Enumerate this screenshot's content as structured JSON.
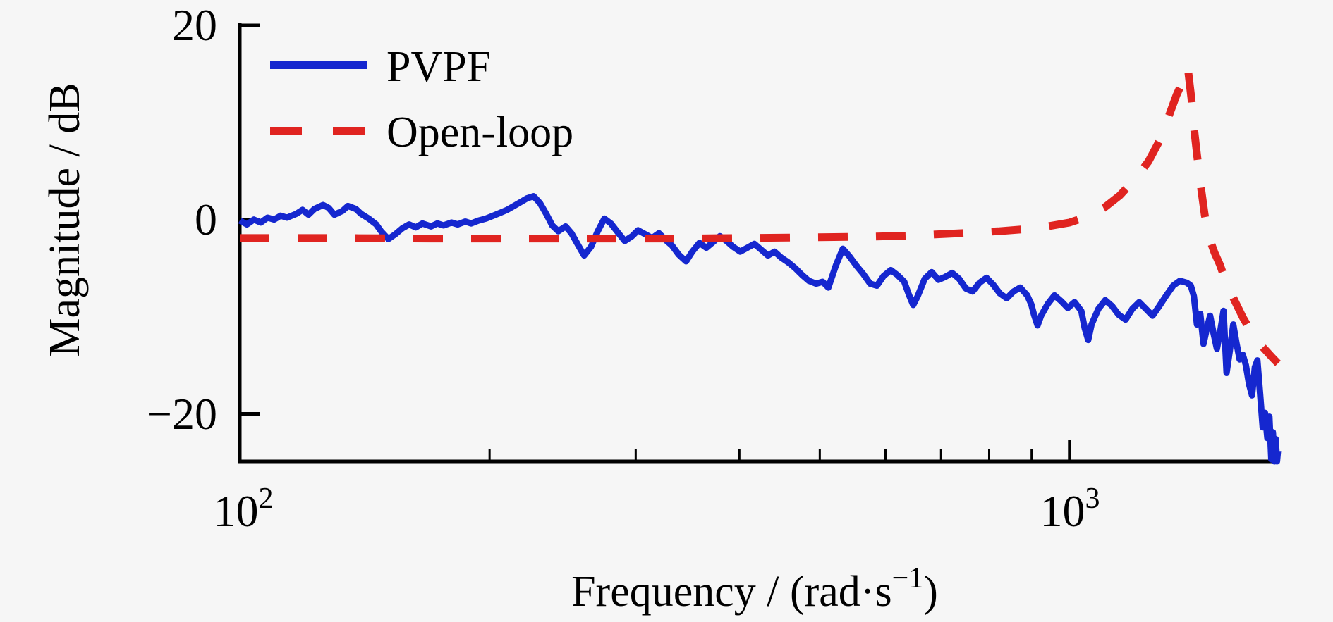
{
  "figure": {
    "background": "#f6f6f6",
    "axis_color": "#000000"
  },
  "chart_data": {
    "type": "line",
    "title": "",
    "xlabel": "Frequency / (rad·s⁻¹)",
    "ylabel": "Magnitude / dB",
    "x_scale": "log",
    "xlim": [
      100,
      1783
    ],
    "ylim": [
      -24.9,
      20
    ],
    "grid": false,
    "legend_position": "upper-left-inside",
    "xlabel_parts": {
      "pre": "Frequency / (rad·s",
      "sup": "−1",
      "post": ")"
    },
    "ylabel_text": "Magnitude / dB",
    "y_ticks": [
      {
        "label": "20",
        "value": 20
      },
      {
        "label": "0",
        "value": 0
      },
      {
        "label": "−20",
        "value": -20
      }
    ],
    "x_major_ticks": [
      {
        "base": "10",
        "sup": "2",
        "value": 100
      },
      {
        "base": "10",
        "sup": "3",
        "value": 1000
      }
    ],
    "x_minor_ticks": [
      200,
      300,
      400,
      500,
      600,
      700,
      800,
      900
    ],
    "series": [
      {
        "name": "PVPF",
        "color": "#1527cf",
        "style": "solid",
        "points": [
          [
            100,
            -0.1
          ],
          [
            102,
            -0.5
          ],
          [
            104,
            0.0
          ],
          [
            106,
            -0.3
          ],
          [
            108,
            0.2
          ],
          [
            110,
            0.0
          ],
          [
            112,
            0.4
          ],
          [
            114,
            0.2
          ],
          [
            117,
            0.6
          ],
          [
            119,
            1.0
          ],
          [
            121,
            0.5
          ],
          [
            123,
            1.1
          ],
          [
            126,
            1.5
          ],
          [
            128,
            1.2
          ],
          [
            130,
            0.5
          ],
          [
            133,
            0.9
          ],
          [
            135,
            1.4
          ],
          [
            138,
            1.1
          ],
          [
            140,
            0.6
          ],
          [
            143,
            0.1
          ],
          [
            146,
            -0.5
          ],
          [
            148,
            -1.2
          ],
          [
            151,
            -2.0
          ],
          [
            154,
            -1.5
          ],
          [
            157,
            -0.9
          ],
          [
            160,
            -0.5
          ],
          [
            163,
            -0.8
          ],
          [
            166,
            -0.4
          ],
          [
            170,
            -0.7
          ],
          [
            173,
            -0.4
          ],
          [
            176,
            -0.6
          ],
          [
            180,
            -0.3
          ],
          [
            183,
            -0.5
          ],
          [
            187,
            -0.2
          ],
          [
            190,
            -0.4
          ],
          [
            194,
            -0.1
          ],
          [
            198,
            0.1
          ],
          [
            202,
            0.4
          ],
          [
            206,
            0.7
          ],
          [
            210,
            1.0
          ],
          [
            214,
            1.4
          ],
          [
            218,
            1.8
          ],
          [
            222,
            2.2
          ],
          [
            226,
            2.4
          ],
          [
            230,
            1.7
          ],
          [
            234,
            0.6
          ],
          [
            238,
            -0.6
          ],
          [
            242,
            -1.2
          ],
          [
            247,
            -0.7
          ],
          [
            251,
            -1.4
          ],
          [
            256,
            -2.7
          ],
          [
            260,
            -3.7
          ],
          [
            265,
            -2.8
          ],
          [
            270,
            -1.2
          ],
          [
            275,
            0.1
          ],
          [
            280,
            -0.4
          ],
          [
            286,
            -1.4
          ],
          [
            291,
            -2.2
          ],
          [
            297,
            -1.7
          ],
          [
            302,
            -1.1
          ],
          [
            308,
            -1.5
          ],
          [
            314,
            -1.9
          ],
          [
            320,
            -1.4
          ],
          [
            326,
            -2.1
          ],
          [
            332,
            -2.7
          ],
          [
            338,
            -3.6
          ],
          [
            345,
            -4.3
          ],
          [
            351,
            -3.3
          ],
          [
            358,
            -2.4
          ],
          [
            365,
            -2.9
          ],
          [
            372,
            -2.3
          ],
          [
            379,
            -1.7
          ],
          [
            386,
            -2.2
          ],
          [
            393,
            -2.8
          ],
          [
            401,
            -3.3
          ],
          [
            409,
            -2.9
          ],
          [
            417,
            -2.5
          ],
          [
            425,
            -3.1
          ],
          [
            433,
            -3.7
          ],
          [
            441,
            -3.3
          ],
          [
            449,
            -3.9
          ],
          [
            458,
            -4.4
          ],
          [
            467,
            -5.0
          ],
          [
            476,
            -5.7
          ],
          [
            485,
            -6.3
          ],
          [
            495,
            -6.6
          ],
          [
            504,
            -6.4
          ],
          [
            512,
            -7.0
          ],
          [
            523,
            -4.7
          ],
          [
            533,
            -3.0
          ],
          [
            543,
            -3.8
          ],
          [
            554,
            -4.8
          ],
          [
            564,
            -5.6
          ],
          [
            575,
            -6.6
          ],
          [
            586,
            -6.8
          ],
          [
            597,
            -5.8
          ],
          [
            609,
            -5.2
          ],
          [
            620,
            -5.7
          ],
          [
            632,
            -6.4
          ],
          [
            640,
            -7.7
          ],
          [
            648,
            -8.8
          ],
          [
            656,
            -7.9
          ],
          [
            669,
            -6.1
          ],
          [
            682,
            -5.4
          ],
          [
            695,
            -6.2
          ],
          [
            708,
            -5.9
          ],
          [
            722,
            -5.5
          ],
          [
            736,
            -6.1
          ],
          [
            750,
            -7.1
          ],
          [
            764,
            -7.4
          ],
          [
            779,
            -6.5
          ],
          [
            794,
            -6.0
          ],
          [
            809,
            -6.7
          ],
          [
            824,
            -7.6
          ],
          [
            840,
            -8.1
          ],
          [
            856,
            -7.4
          ],
          [
            872,
            -7.0
          ],
          [
            889,
            -7.8
          ],
          [
            899,
            -8.7
          ],
          [
            906,
            -9.8
          ],
          [
            915,
            -10.9
          ],
          [
            924,
            -9.9
          ],
          [
            941,
            -8.7
          ],
          [
            959,
            -7.8
          ],
          [
            977,
            -8.4
          ],
          [
            995,
            -9.1
          ],
          [
            1014,
            -8.5
          ],
          [
            1033,
            -9.4
          ],
          [
            1043,
            -11.2
          ],
          [
            1053,
            -12.4
          ],
          [
            1063,
            -10.8
          ],
          [
            1083,
            -9.2
          ],
          [
            1104,
            -8.3
          ],
          [
            1125,
            -8.9
          ],
          [
            1146,
            -9.8
          ],
          [
            1168,
            -10.3
          ],
          [
            1190,
            -9.2
          ],
          [
            1213,
            -8.5
          ],
          [
            1236,
            -9.2
          ],
          [
            1259,
            -9.9
          ],
          [
            1283,
            -8.9
          ],
          [
            1308,
            -7.8
          ],
          [
            1333,
            -6.8
          ],
          [
            1358,
            -6.3
          ],
          [
            1384,
            -6.5
          ],
          [
            1400,
            -6.8
          ],
          [
            1412,
            -7.9
          ],
          [
            1424,
            -10.8
          ],
          [
            1437,
            -9.7
          ],
          [
            1450,
            -12.8
          ],
          [
            1463,
            -11.3
          ],
          [
            1477,
            -9.9
          ],
          [
            1491,
            -11.7
          ],
          [
            1505,
            -13.3
          ],
          [
            1519,
            -11.5
          ],
          [
            1533,
            -9.4
          ],
          [
            1546,
            -15.8
          ],
          [
            1560,
            -13.5
          ],
          [
            1575,
            -10.8
          ],
          [
            1589,
            -12.7
          ],
          [
            1603,
            -14.4
          ],
          [
            1617,
            -13.9
          ],
          [
            1631,
            -15.0
          ],
          [
            1645,
            -16.9
          ],
          [
            1659,
            -18.1
          ],
          [
            1672,
            -15.2
          ],
          [
            1684,
            -14.5
          ],
          [
            1697,
            -18.0
          ],
          [
            1709,
            -21.4
          ],
          [
            1720,
            -19.9
          ],
          [
            1731,
            -22.5
          ],
          [
            1741,
            -20.3
          ],
          [
            1750,
            -24.7
          ],
          [
            1758,
            -21.9
          ],
          [
            1766,
            -24.9
          ],
          [
            1772,
            -22.6
          ],
          [
            1778,
            -24.9
          ],
          [
            1783,
            -23.8
          ]
        ]
      },
      {
        "name": "Open-loop",
        "color": "#e02420",
        "style": "dashed",
        "points": [
          [
            100,
            -1.9
          ],
          [
            130,
            -1.9
          ],
          [
            170,
            -1.95
          ],
          [
            220,
            -1.95
          ],
          [
            280,
            -1.95
          ],
          [
            340,
            -1.95
          ],
          [
            400,
            -1.9
          ],
          [
            460,
            -1.85
          ],
          [
            520,
            -1.8
          ],
          [
            580,
            -1.75
          ],
          [
            640,
            -1.65
          ],
          [
            700,
            -1.5
          ],
          [
            760,
            -1.35
          ],
          [
            820,
            -1.2
          ],
          [
            880,
            -1.0
          ],
          [
            940,
            -0.7
          ],
          [
            1000,
            -0.3
          ],
          [
            1050,
            0.3
          ],
          [
            1100,
            1.2
          ],
          [
            1150,
            2.5
          ],
          [
            1200,
            4.2
          ],
          [
            1245,
            6.0
          ],
          [
            1285,
            8.2
          ],
          [
            1315,
            10.5
          ],
          [
            1345,
            12.8
          ],
          [
            1370,
            14.3
          ],
          [
            1388,
            15.7
          ],
          [
            1402,
            12.5
          ],
          [
            1412,
            9.5
          ],
          [
            1425,
            6.5
          ],
          [
            1440,
            3.3
          ],
          [
            1455,
            0.5
          ],
          [
            1472,
            -1.8
          ],
          [
            1495,
            -3.4
          ],
          [
            1517,
            -4.6
          ],
          [
            1548,
            -6.7
          ],
          [
            1582,
            -8.4
          ],
          [
            1618,
            -10.1
          ],
          [
            1662,
            -11.8
          ],
          [
            1708,
            -13.1
          ],
          [
            1755,
            -14.2
          ],
          [
            1783,
            -14.8
          ]
        ]
      }
    ]
  },
  "legend": {
    "items": [
      {
        "label": "PVPF"
      },
      {
        "label": "Open-loop"
      }
    ]
  }
}
